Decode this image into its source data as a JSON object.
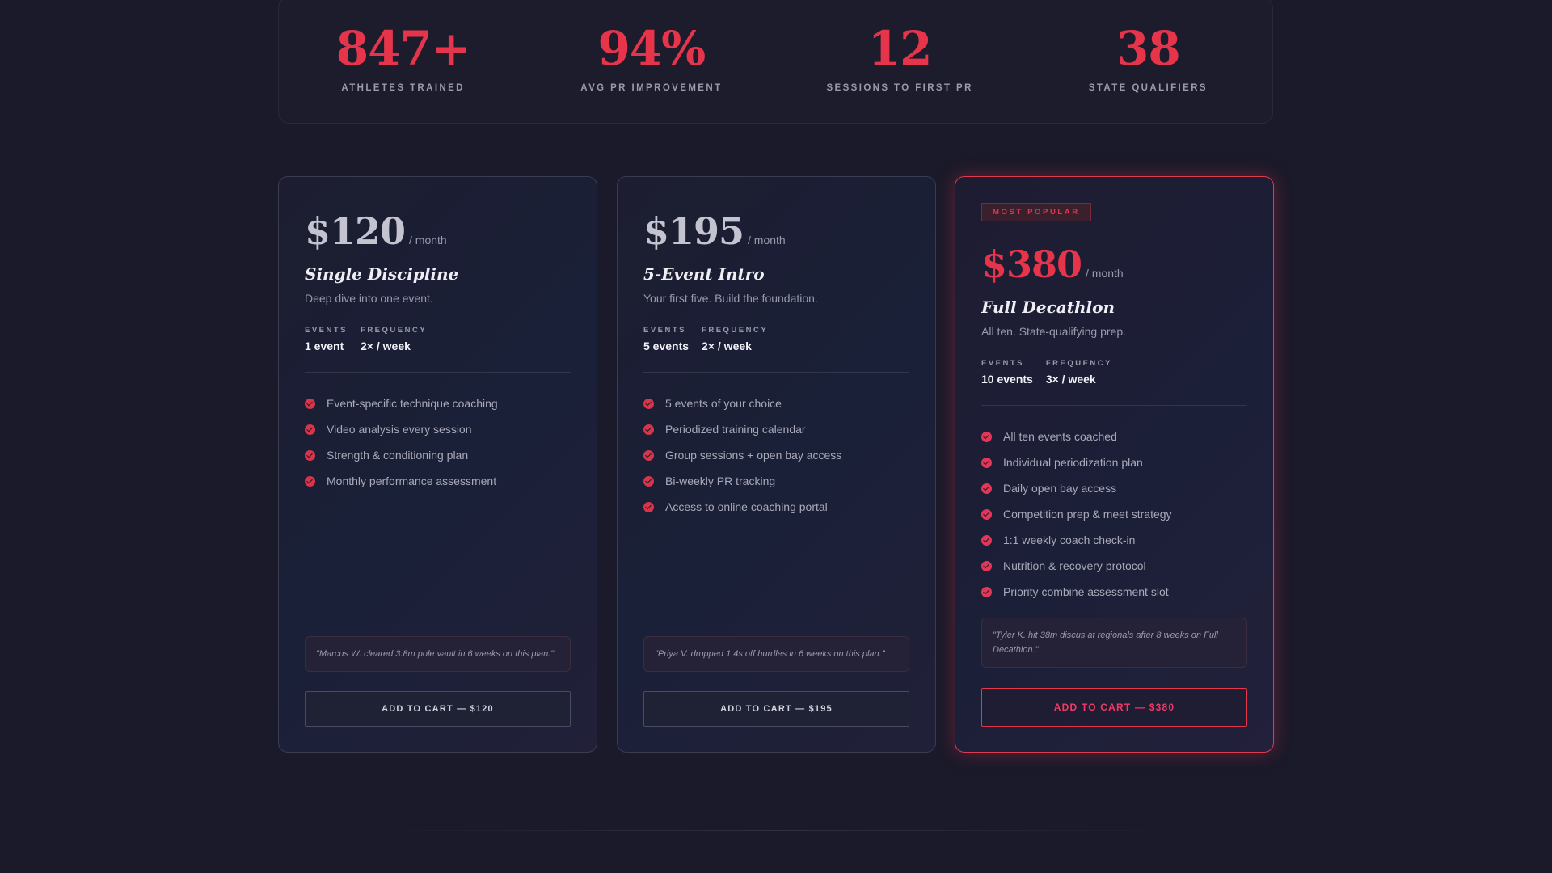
{
  "stats": [
    {
      "value": "847+",
      "label": "ATHLETES TRAINED"
    },
    {
      "value": "94%",
      "label": "AVG PR IMPROVEMENT"
    },
    {
      "value": "12",
      "label": "SESSIONS TO FIRST PR"
    },
    {
      "value": "38",
      "label": "STATE QUALIFIERS"
    }
  ],
  "plans": [
    {
      "price": "$120",
      "period": "/ month",
      "name": "Single Discipline",
      "description": "Deep dive into one event.",
      "events_label": "EVENTS",
      "events_value": "1 event",
      "frequency_label": "FREQUENCY",
      "frequency_value": "2× / week",
      "features": [
        "Event-specific technique coaching",
        "Video analysis every session",
        "Strength & conditioning plan",
        "Monthly performance assessment"
      ],
      "testimonial": "\"Marcus W. cleared 3.8m pole vault in 6 weeks on this plan.\"",
      "cta": "ADD TO CART — $120"
    },
    {
      "price": "$195",
      "period": "/ month",
      "name": "5-Event Intro",
      "description": "Your first five. Build the foundation.",
      "events_label": "EVENTS",
      "events_value": "5 events",
      "frequency_label": "FREQUENCY",
      "frequency_value": "2× / week",
      "features": [
        "5 events of your choice",
        "Periodized training calendar",
        "Group sessions + open bay access",
        "Bi-weekly PR tracking",
        "Access to online coaching portal"
      ],
      "testimonial": "\"Priya V. dropped 1.4s off hurdles in 6 weeks on this plan.\"",
      "cta": "ADD TO CART — $195"
    },
    {
      "badge": "MOST POPULAR",
      "price": "$380",
      "period": "/ month",
      "name": "Full Decathlon",
      "description": "All ten. State-qualifying prep.",
      "events_label": "EVENTS",
      "events_value": "10 events",
      "frequency_label": "FREQUENCY",
      "frequency_value": "3× / week",
      "features": [
        "All ten events coached",
        "Individual periodization plan",
        "Daily open bay access",
        "Competition prep & meet strategy",
        "1:1 weekly coach check-in",
        "Nutrition & recovery protocol",
        "Priority combine assessment slot"
      ],
      "testimonial": "\"Tyler K. hit 38m discus at regionals after 8 weeks on Full Decathlon.\"",
      "cta": "ADD TO CART — $380"
    }
  ],
  "colors": {
    "accent": "#e6354b",
    "background": "#1b1a2a",
    "card_border": "#3c3c50"
  },
  "icons": {
    "feature": "check-circle-icon"
  }
}
